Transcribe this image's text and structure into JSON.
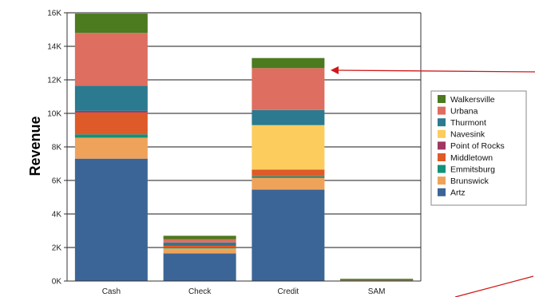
{
  "chart_data": {
    "type": "bar",
    "stacked": true,
    "ylabel": "Revenue",
    "xlabel": "",
    "ylim": [
      0,
      16000
    ],
    "y_ticks": [
      0,
      2000,
      4000,
      6000,
      8000,
      10000,
      12000,
      14000,
      16000
    ],
    "y_tick_labels": [
      "0K",
      "2K",
      "4K",
      "6K",
      "8K",
      "10K",
      "12K",
      "14K",
      "16K"
    ],
    "grid": true,
    "legend_position": "right",
    "categories": [
      "Cash",
      "Check",
      "Credit",
      "SAM"
    ],
    "series": [
      {
        "name": "Artz",
        "color": "#3b6596",
        "values": [
          7300,
          1650,
          5450,
          30
        ]
      },
      {
        "name": "Brunswick",
        "color": "#efa35a",
        "values": [
          1250,
          300,
          700,
          10
        ]
      },
      {
        "name": "Emmitsburg",
        "color": "#10937a",
        "values": [
          200,
          50,
          100,
          5
        ]
      },
      {
        "name": "Middletown",
        "color": "#de5a28",
        "values": [
          1300,
          100,
          400,
          5
        ]
      },
      {
        "name": "Point of Rocks",
        "color": "#9f3763",
        "values": [
          100,
          50,
          0,
          0
        ]
      },
      {
        "name": "Navesink",
        "color": "#fccc5d",
        "values": [
          0,
          0,
          2650,
          0
        ]
      },
      {
        "name": "Thurmont",
        "color": "#2b7a8f",
        "values": [
          1500,
          150,
          900,
          0
        ]
      },
      {
        "name": "Urbana",
        "color": "#dd6e60",
        "values": [
          3150,
          200,
          2500,
          10
        ]
      },
      {
        "name": "Walkersville",
        "color": "#4c7a1e",
        "values": [
          1150,
          200,
          600,
          10
        ]
      }
    ]
  }
}
